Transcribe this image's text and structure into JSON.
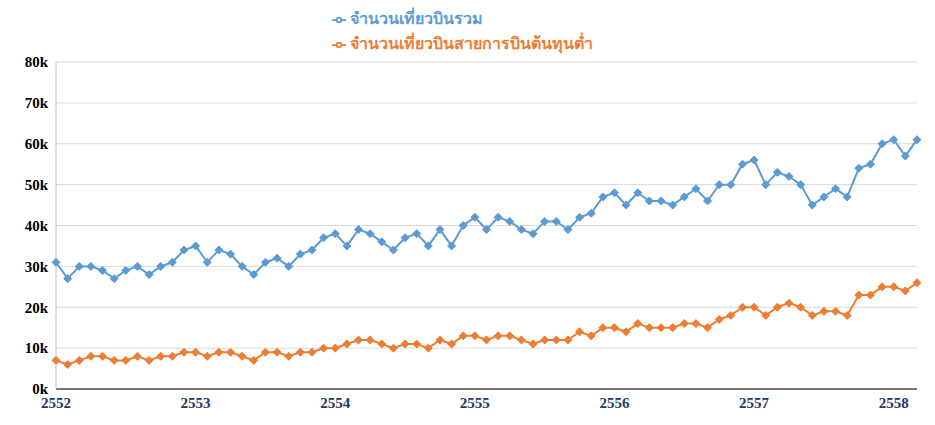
{
  "chart_data": {
    "type": "line",
    "categories": [
      "2552",
      null,
      null,
      null,
      null,
      null,
      null,
      null,
      null,
      null,
      null,
      null,
      "2553",
      null,
      null,
      null,
      null,
      null,
      null,
      null,
      null,
      null,
      null,
      null,
      "2554",
      null,
      null,
      null,
      null,
      null,
      null,
      null,
      null,
      null,
      null,
      null,
      "2555",
      null,
      null,
      null,
      null,
      null,
      null,
      null,
      null,
      null,
      null,
      null,
      "2556",
      null,
      null,
      null,
      null,
      null,
      null,
      null,
      null,
      null,
      null,
      null,
      "2557",
      null,
      null,
      null,
      null,
      null,
      null,
      null,
      null,
      null,
      null,
      null,
      "2558",
      null,
      null
    ],
    "series": [
      {
        "name": "จำนวนเที่ยวบินรวม",
        "color": "#5b9bd5",
        "marker": "diamond",
        "values": [
          31000,
          27000,
          30000,
          30000,
          29000,
          27000,
          29000,
          30000,
          28000,
          30000,
          31000,
          34000,
          35000,
          31000,
          34000,
          33000,
          30000,
          28000,
          31000,
          32000,
          30000,
          33000,
          34000,
          37000,
          38000,
          35000,
          39000,
          38000,
          36000,
          34000,
          37000,
          38000,
          35000,
          39000,
          35000,
          40000,
          42000,
          39000,
          42000,
          41000,
          39000,
          38000,
          41000,
          41000,
          39000,
          42000,
          43000,
          47000,
          48000,
          45000,
          48000,
          46000,
          46000,
          45000,
          47000,
          49000,
          46000,
          50000,
          50000,
          55000,
          56000,
          50000,
          53000,
          52000,
          50000,
          45000,
          47000,
          49000,
          47000,
          54000,
          55000,
          60000,
          61000,
          57000,
          61000
        ]
      },
      {
        "name": "จำนวนเที่ยวบินสายการบินต้นทุนต่ำ",
        "color": "#ed7d31",
        "marker": "diamond",
        "values": [
          7000,
          6000,
          7000,
          8000,
          8000,
          7000,
          7000,
          8000,
          7000,
          8000,
          8000,
          9000,
          9000,
          8000,
          9000,
          9000,
          8000,
          7000,
          9000,
          9000,
          8000,
          9000,
          9000,
          10000,
          10000,
          11000,
          12000,
          12000,
          11000,
          10000,
          11000,
          11000,
          10000,
          12000,
          11000,
          13000,
          13000,
          12000,
          13000,
          13000,
          12000,
          11000,
          12000,
          12000,
          12000,
          14000,
          13000,
          15000,
          15000,
          14000,
          16000,
          15000,
          15000,
          15000,
          16000,
          16000,
          15000,
          17000,
          18000,
          20000,
          20000,
          18000,
          20000,
          21000,
          20000,
          18000,
          19000,
          19000,
          18000,
          23000,
          23000,
          25000,
          25000,
          24000,
          26000
        ]
      }
    ],
    "ylim": [
      0,
      80000
    ],
    "yticks": [
      {
        "value": 0,
        "label": "0k"
      },
      {
        "value": 10000,
        "label": "10k"
      },
      {
        "value": 20000,
        "label": "20k"
      },
      {
        "value": 30000,
        "label": "30k"
      },
      {
        "value": 40000,
        "label": "40k"
      },
      {
        "value": 50000,
        "label": "50k"
      },
      {
        "value": 60000,
        "label": "60k"
      },
      {
        "value": 70000,
        "label": "70k"
      },
      {
        "value": 80000,
        "label": "80k"
      }
    ],
    "grid": true,
    "legend": "top"
  }
}
